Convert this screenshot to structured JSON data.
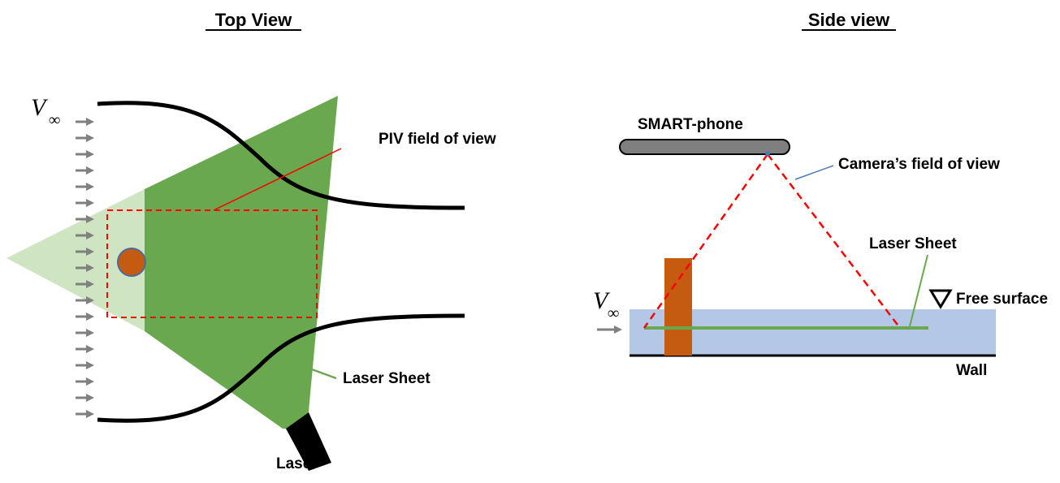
{
  "top_view": {
    "title": "Top View",
    "freestream_symbol": "V",
    "freestream_subscript": "∞",
    "piv_label": "PIV field of view",
    "laser_sheet_label": "Laser Sheet",
    "laser_label": "Laser",
    "flow_arrow_count": 19
  },
  "side_view": {
    "title": "Side view",
    "phone_label": "SMART-phone",
    "camera_label": "Camera’s field of view",
    "laser_sheet_label": "Laser Sheet",
    "free_surface_label": "Free surface",
    "wall_label": "Wall",
    "freestream_symbol": "V",
    "freestream_subscript": "∞"
  },
  "colors": {
    "laser_green": "#6aa84f",
    "light_green": "#cfe5c1",
    "cylinder_orange": "#c55a11",
    "cylinder_outline": "#4a6aa0",
    "water_blue": "#b4c7e7",
    "dashed_red": "#ff0000",
    "arrow_gray": "#808080",
    "phone_gray": "#7f7f7f",
    "camera_leader_blue": "#4a7ab8"
  }
}
